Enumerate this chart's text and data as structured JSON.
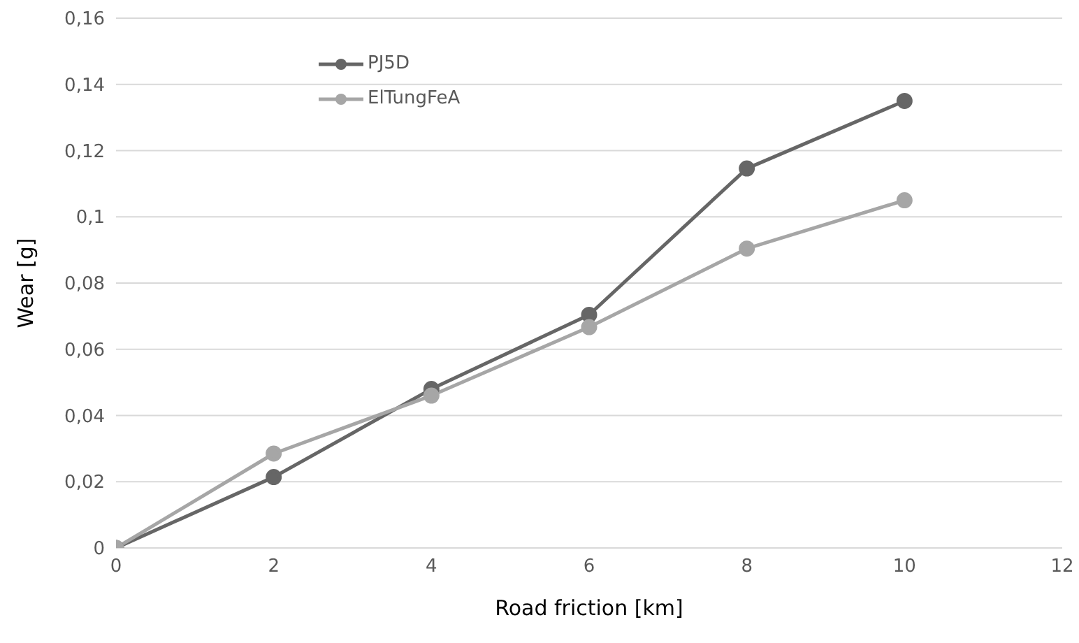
{
  "chart_data": {
    "type": "line",
    "xlabel": "Road friction [km]",
    "ylabel": "Wear [g]",
    "x": [
      0,
      2,
      4,
      6,
      8,
      10
    ],
    "series": [
      {
        "name": "PJ5D",
        "color": "#666666",
        "values": [
          0,
          0.0214,
          0.048,
          0.0704,
          0.1146,
          0.135
        ]
      },
      {
        "name": "ElTungFeA",
        "color": "#a6a6a6",
        "values": [
          0,
          0.0285,
          0.046,
          0.0667,
          0.0904,
          0.105
        ]
      }
    ],
    "xlim": [
      0,
      12
    ],
    "xticks": [
      0,
      2,
      4,
      6,
      8,
      10,
      12
    ],
    "ylim": [
      0,
      0.16
    ],
    "yticks": [
      0,
      {
        "value": 0.02,
        "label": "0,02"
      },
      {
        "value": 0.04,
        "label": "0,04"
      },
      {
        "value": 0.06,
        "label": "0,06"
      },
      {
        "value": 0.08,
        "label": "0,08"
      },
      {
        "value": 0.1,
        "label": "0,1"
      },
      {
        "value": 0.12,
        "label": "0,12"
      },
      {
        "value": 0.14,
        "label": "0,14"
      },
      {
        "value": 0.16,
        "label": "0,16"
      }
    ],
    "grid": "y",
    "legend": "top left",
    "marker": "circle",
    "line_style": "solid"
  }
}
